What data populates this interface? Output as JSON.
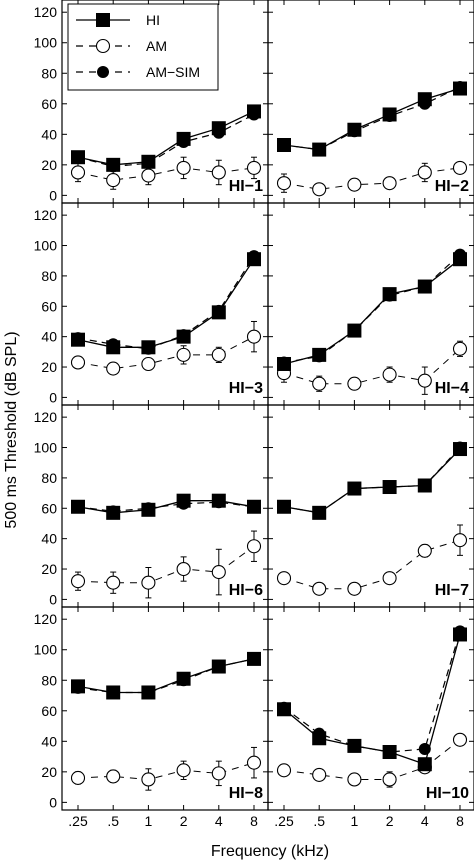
{
  "chart_data": {
    "type": "line",
    "ylabel": "500 ms Threshold (dB SPL)",
    "xlabel": "Frequency (kHz)",
    "x_tick_labels": [
      ".25",
      ".5",
      "1",
      "2",
      "4",
      "8"
    ],
    "y_ticks": [
      0,
      20,
      40,
      60,
      80,
      100,
      120
    ],
    "ylim": [
      -5,
      128
    ],
    "x_scale": "log2 (octave steps)",
    "grid": false,
    "legend": {
      "placement": "top-left",
      "entries": [
        {
          "label": "HI",
          "marker": "filled-square",
          "line": "solid"
        },
        {
          "label": "AM",
          "marker": "open-circle",
          "line": "dashed"
        },
        {
          "label": "AM−SIM",
          "marker": "filled-circle",
          "line": "dashed"
        }
      ]
    },
    "panels": [
      {
        "label": "HI−1",
        "HI": [
          25,
          20,
          22,
          37,
          44,
          55
        ],
        "AM_SIM": [
          25,
          19,
          21,
          35,
          41,
          53
        ],
        "AM": [
          15,
          10,
          13,
          18,
          15,
          18
        ],
        "AM_err": [
          6,
          6,
          6,
          7,
          8,
          7
        ]
      },
      {
        "label": "HI−2",
        "HI": [
          33,
          30,
          43,
          53,
          63,
          70
        ],
        "AM_SIM": [
          33,
          30,
          42,
          52,
          60,
          71
        ],
        "AM": [
          8,
          4,
          7,
          8,
          15,
          18
        ],
        "AM_err": [
          6,
          0,
          0,
          0,
          6,
          0
        ]
      },
      {
        "label": "HI−3",
        "HI": [
          38,
          33,
          33,
          40,
          56,
          91
        ],
        "AM_SIM": [
          39,
          35,
          32,
          41,
          57,
          93
        ],
        "AM": [
          23,
          19,
          22,
          28,
          28,
          40
        ],
        "AM_err": [
          0,
          0,
          4,
          6,
          5,
          10
        ]
      },
      {
        "label": "HI−4",
        "HI": [
          22,
          28,
          44,
          68,
          73,
          91
        ],
        "AM_SIM": [
          23,
          27,
          44,
          67,
          73,
          94
        ],
        "AM": [
          16,
          9,
          9,
          15,
          11,
          32
        ],
        "AM_err": [
          6,
          5,
          0,
          5,
          9,
          5
        ]
      },
      {
        "label": "HI−6",
        "HI": [
          61,
          57,
          59,
          65,
          65,
          61
        ],
        "AM_SIM": [
          61,
          58,
          60,
          63,
          64,
          61
        ],
        "AM": [
          12,
          11,
          11,
          20,
          18,
          35
        ],
        "AM_err": [
          6,
          7,
          10,
          8,
          15,
          10
        ]
      },
      {
        "label": "HI−7",
        "HI": [
          61,
          57,
          73,
          74,
          75,
          99
        ],
        "AM_SIM": [
          61,
          57,
          73,
          74,
          75,
          100
        ],
        "AM": [
          14,
          7,
          7,
          14,
          32,
          39
        ],
        "AM_err": [
          0,
          0,
          0,
          0,
          4,
          10
        ]
      },
      {
        "label": "HI−8",
        "HI": [
          76,
          72,
          72,
          81,
          89,
          94
        ],
        "AM_SIM": [
          75,
          72,
          72,
          80,
          89,
          94
        ],
        "AM": [
          16,
          17,
          15,
          21,
          19,
          26
        ],
        "AM_err": [
          4,
          4,
          7,
          6,
          8,
          10
        ]
      },
      {
        "label": "HI−10",
        "HI": [
          61,
          42,
          37,
          33,
          25,
          110
        ],
        "AM_SIM": [
          62,
          45,
          37,
          33,
          35,
          112
        ],
        "AM": [
          21,
          18,
          15,
          15,
          23,
          41
        ],
        "AM_err": [
          0,
          0,
          0,
          5,
          0,
          0
        ]
      }
    ]
  }
}
